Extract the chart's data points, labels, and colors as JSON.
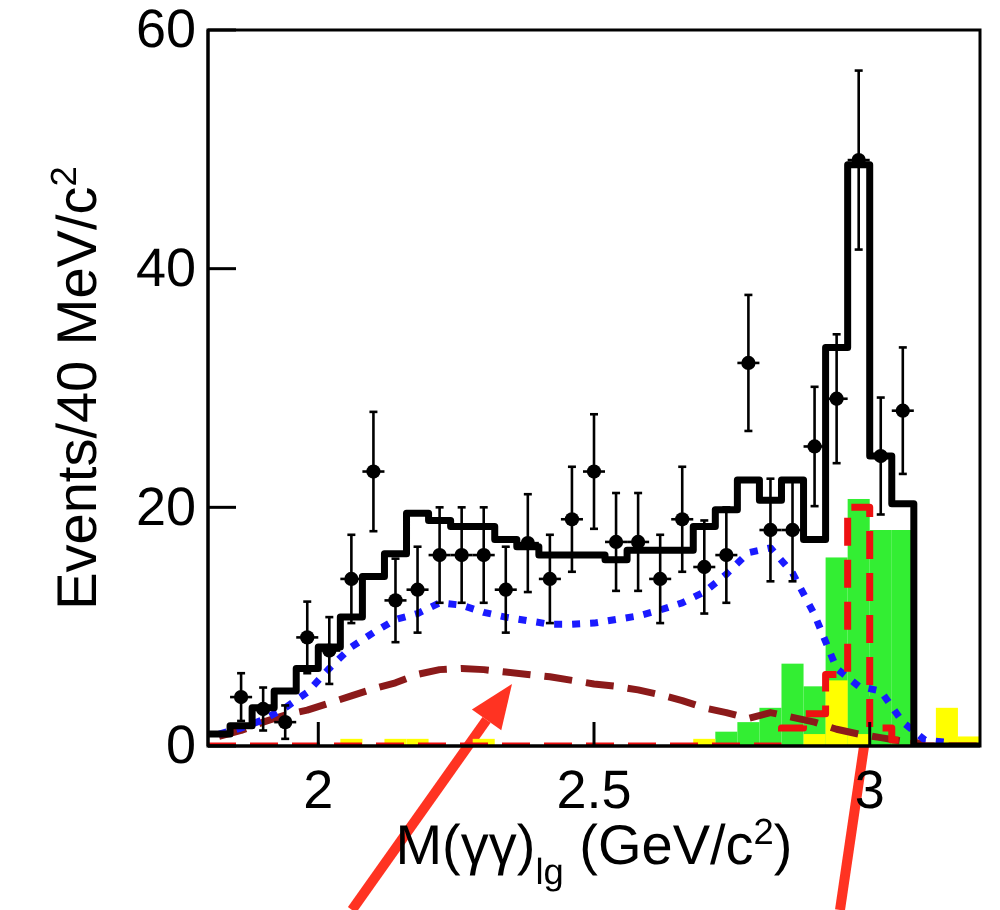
{
  "chart_data": {
    "type": "step",
    "xlabel": "M(γγ)$_{lg}$ (GeV/c$^{2}$)",
    "ylabel": "Events/40 MeV/c$^{2}$",
    "xlim": [
      1.8,
      3.2
    ],
    "xticks": [
      2,
      2.5,
      3
    ],
    "ylim": [
      0,
      60
    ],
    "yticks": [
      0,
      20,
      40,
      60
    ],
    "grid": false,
    "series": [
      {
        "type": "histogram",
        "color": "#33ee33",
        "bins": [
          2.72,
          2.76,
          2.8,
          2.84,
          2.88,
          2.92,
          2.96,
          3.0,
          3.04,
          3.08
        ],
        "values": [
          1.2,
          2.0,
          3.2,
          6.9,
          5.0,
          15.8,
          20.7,
          18.1,
          18.1
        ]
      },
      {
        "type": "histogram",
        "color": "#ffff00",
        "bins": [
          2.04,
          2.08,
          2.12,
          2.16,
          2.2,
          2.24,
          2.28,
          2.32,
          2.36,
          2.4,
          2.44,
          2.48,
          2.52,
          2.56,
          2.6,
          2.64,
          2.68,
          2.72,
          2.76,
          2.8,
          2.84,
          2.88,
          2.92,
          2.96,
          3.0,
          3.04,
          3.08,
          3.12,
          3.16,
          3.2
        ],
        "values": [
          0.6,
          0,
          0.6,
          0.6,
          0,
          0,
          0.6,
          0,
          0,
          0,
          0,
          0,
          0,
          0,
          0,
          0,
          0.6,
          0,
          0,
          0,
          0,
          1.0,
          5.5,
          1.0,
          0,
          0,
          0,
          3.2,
          0.8
        ]
      },
      {
        "type": "line",
        "color": "#8b1a1a",
        "line_style": "dashed",
        "x": [
          1.82,
          1.86,
          1.9,
          1.94,
          1.98,
          2.02,
          2.06,
          2.1,
          2.14,
          2.18,
          2.22,
          2.26,
          2.3,
          2.34,
          2.38,
          2.42,
          2.46,
          2.5,
          2.54,
          2.58,
          2.62,
          2.66,
          2.7,
          2.74,
          2.78,
          2.82,
          2.86,
          2.9,
          2.94,
          2.98,
          3.02,
          3.06,
          3.1
        ],
        "values": [
          0.8,
          1.3,
          2.0,
          2.6,
          3.0,
          3.6,
          4.2,
          4.8,
          5.3,
          6.0,
          6.4,
          6.5,
          6.4,
          6.2,
          6.0,
          5.8,
          5.5,
          5.2,
          5.0,
          4.7,
          4.3,
          3.8,
          3.2,
          2.8,
          2.3,
          2.8,
          2.4,
          2.0,
          1.4,
          1.0,
          0.7,
          0.4,
          0.2
        ]
      },
      {
        "type": "line",
        "color": "#1a1aff",
        "line_style": "dotted",
        "x": [
          1.82,
          1.86,
          1.9,
          1.94,
          1.98,
          2.02,
          2.06,
          2.1,
          2.14,
          2.18,
          2.22,
          2.26,
          2.3,
          2.34,
          2.38,
          2.42,
          2.46,
          2.5,
          2.54,
          2.58,
          2.62,
          2.66,
          2.7,
          2.74,
          2.78,
          2.82,
          2.86,
          2.9,
          2.94,
          2.98,
          3.02,
          3.06,
          3.1,
          3.14
        ],
        "values": [
          1.0,
          1.5,
          2.2,
          3.2,
          4.5,
          6.5,
          8.3,
          9.5,
          10.6,
          11.1,
          12.0,
          11.8,
          11.2,
          10.8,
          10.5,
          10.2,
          10.2,
          10.3,
          10.6,
          10.9,
          11.4,
          12.0,
          12.9,
          14.4,
          16.2,
          16.6,
          14.5,
          11.0,
          6.5,
          5.0,
          4.6,
          2.0,
          0.5,
          0.3
        ]
      },
      {
        "type": "step",
        "color": "#ee1111",
        "line_style": "dashed",
        "x": [
          1.8,
          2.84,
          2.88,
          2.92,
          2.96,
          3.0,
          3.04,
          3.08,
          3.2
        ],
        "values": [
          0,
          1.5,
          2.7,
          6.0,
          20.0,
          1.5,
          0.5,
          0,
          0
        ]
      },
      {
        "color": "#000000",
        "line_style": "solid",
        "x": [
          1.8,
          1.84,
          1.88,
          1.92,
          1.96,
          2.0,
          2.04,
          2.08,
          2.12,
          2.16,
          2.2,
          2.24,
          2.28,
          2.32,
          2.36,
          2.4,
          2.44,
          2.48,
          2.52,
          2.56,
          2.6,
          2.64,
          2.68,
          2.72,
          2.76,
          2.8,
          2.84,
          2.88,
          2.92,
          2.96,
          3.0,
          3.04,
          3.08,
          3.2
        ],
        "values": [
          1.0,
          1.7,
          3.2,
          4.6,
          6.5,
          8.3,
          10.8,
          14.2,
          16.1,
          19.5,
          18.9,
          18.4,
          18.4,
          17.3,
          16.7,
          16.0,
          16.0,
          16.0,
          15.6,
          16.4,
          16.4,
          16.4,
          18.4,
          19.8,
          22.3,
          20.6,
          22.3,
          17.3,
          33.4,
          48.7,
          24.3,
          20.3,
          0,
          0
        ]
      },
      {
        "type": "scatter",
        "color": "#000000",
        "marker": "circle",
        "x": [
          1.86,
          1.9,
          1.94,
          1.98,
          2.02,
          2.06,
          2.1,
          2.14,
          2.18,
          2.22,
          2.26,
          2.3,
          2.34,
          2.38,
          2.42,
          2.46,
          2.5,
          2.54,
          2.58,
          2.62,
          2.66,
          2.7,
          2.74,
          2.78,
          2.82,
          2.86,
          2.9,
          2.94,
          2.98,
          3.02,
          3.06
        ],
        "values": [
          4.1,
          3.1,
          2.0,
          9.1,
          8.0,
          14.0,
          23.0,
          12.2,
          13.1,
          16.0,
          16.0,
          16.0,
          13.1,
          17.0,
          14.0,
          19.0,
          23.0,
          17.1,
          17.1,
          14.0,
          19.0,
          15.0,
          16.0,
          32.1,
          18.1,
          18.1,
          25.1,
          29.1,
          49.1,
          24.3,
          28.1
        ],
        "errors": [
          2.0,
          1.8,
          1.4,
          3.0,
          2.8,
          3.7,
          5.0,
          3.5,
          3.6,
          4.0,
          4.0,
          4.0,
          3.6,
          4.1,
          3.7,
          4.4,
          4.8,
          4.1,
          4.1,
          3.7,
          4.4,
          3.9,
          4.0,
          5.7,
          4.3,
          4.3,
          5.0,
          5.4,
          7.5,
          4.9,
          5.3
        ],
        "xerrors": [
          0.02,
          0.02,
          0.02,
          0.02,
          0.02,
          0.02,
          0.02,
          0.02,
          0.02,
          0.02,
          0.02,
          0.02,
          0.02,
          0.02,
          0.02,
          0.02,
          0.02,
          0.02,
          0.02,
          0.02,
          0.02,
          0.02,
          0.02,
          0.02,
          0.02,
          0.02,
          0.02,
          0.02,
          0.02,
          0.02,
          0.02
        ]
      }
    ]
  }
}
